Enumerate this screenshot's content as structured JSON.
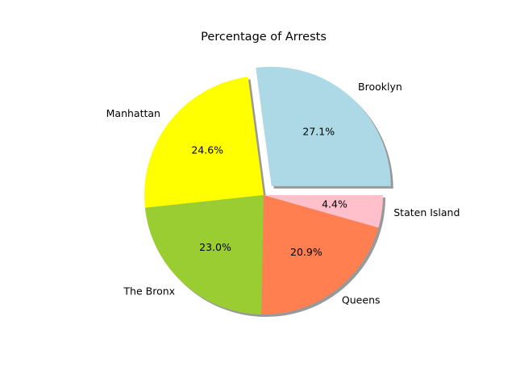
{
  "chart_data": {
    "type": "pie",
    "title": "Percentage of Arrests",
    "categories": [
      "Brooklyn",
      "Manhattan",
      "The Bronx",
      "Queens",
      "Staten Island"
    ],
    "values": [
      27.1,
      24.6,
      23.0,
      20.9,
      4.4
    ],
    "value_labels": [
      "27.1%",
      "24.6%",
      "23.0%",
      "20.9%",
      "4.4%"
    ],
    "colors": [
      "#add8e6",
      "#ffff00",
      "#9acd32",
      "#ff7f50",
      "#ffc0cb"
    ],
    "explode": [
      0.1,
      0,
      0,
      0,
      0
    ],
    "start_angle_deg": 0,
    "direction": "counterclockwise",
    "shadow": true
  }
}
